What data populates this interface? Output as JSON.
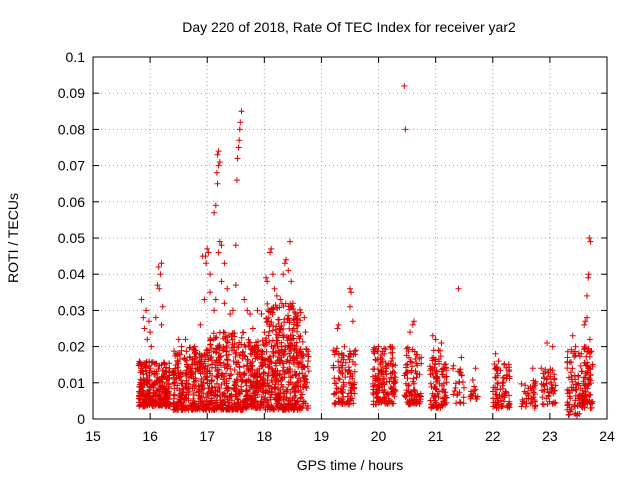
{
  "chart_data": {
    "type": "scatter",
    "title": "Day 220 of 2018, Rate Of TEC Index for receiver yar2",
    "xlabel": "GPS time / hours",
    "ylabel": "ROTI / TECUs",
    "xlim": [
      15,
      24
    ],
    "ylim": [
      0,
      0.1
    ],
    "xticks": [
      "15",
      "16",
      "17",
      "18",
      "19",
      "20",
      "21",
      "22",
      "23",
      "24"
    ],
    "yticks": [
      "0",
      "0.01",
      "0.02",
      "0.03",
      "0.04",
      "0.05",
      "0.06",
      "0.07",
      "0.08",
      "0.09",
      "0.1"
    ],
    "grid": true,
    "marker": "+",
    "color": "#e00000",
    "series": [
      {
        "points": [
          [
            15.85,
            0.033
          ],
          [
            15.88,
            0.028
          ],
          [
            15.9,
            0.025
          ],
          [
            15.93,
            0.03
          ],
          [
            15.95,
            0.022
          ],
          [
            15.98,
            0.027
          ],
          [
            16.0,
            0.024
          ],
          [
            16.02,
            0.02
          ],
          [
            16.15,
            0.042
          ],
          [
            16.18,
            0.04
          ],
          [
            16.2,
            0.043
          ],
          [
            16.13,
            0.037
          ],
          [
            16.16,
            0.036
          ],
          [
            16.22,
            0.031
          ],
          [
            16.1,
            0.028
          ],
          [
            16.2,
            0.026
          ],
          [
            16.45,
            0.018
          ],
          [
            16.5,
            0.022
          ],
          [
            16.55,
            0.02
          ],
          [
            16.62,
            0.022
          ],
          [
            16.7,
            0.017
          ],
          [
            16.78,
            0.02
          ],
          [
            16.82,
            0.016
          ],
          [
            16.88,
            0.026
          ],
          [
            16.92,
            0.045
          ],
          [
            16.97,
            0.045
          ],
          [
            17.0,
            0.047
          ],
          [
            17.02,
            0.046
          ],
          [
            16.98,
            0.043
          ],
          [
            17.05,
            0.04
          ],
          [
            16.95,
            0.033
          ],
          [
            17.05,
            0.035
          ],
          [
            17.12,
            0.057
          ],
          [
            17.15,
            0.059
          ],
          [
            17.17,
            0.068
          ],
          [
            17.18,
            0.065
          ],
          [
            17.2,
            0.07
          ],
          [
            17.18,
            0.073
          ],
          [
            17.2,
            0.074
          ],
          [
            17.22,
            0.071
          ],
          [
            17.22,
            0.049
          ],
          [
            17.2,
            0.046
          ],
          [
            17.25,
            0.048
          ],
          [
            17.3,
            0.043
          ],
          [
            17.25,
            0.038
          ],
          [
            17.12,
            0.03
          ],
          [
            17.15,
            0.033
          ],
          [
            17.3,
            0.032
          ],
          [
            17.35,
            0.036
          ],
          [
            17.4,
            0.029
          ],
          [
            17.45,
            0.03
          ],
          [
            17.5,
            0.037
          ],
          [
            17.52,
            0.066
          ],
          [
            17.53,
            0.072
          ],
          [
            17.55,
            0.075
          ],
          [
            17.56,
            0.077
          ],
          [
            17.57,
            0.08
          ],
          [
            17.58,
            0.082
          ],
          [
            17.6,
            0.085
          ],
          [
            17.5,
            0.048
          ],
          [
            17.65,
            0.033
          ],
          [
            17.7,
            0.03
          ],
          [
            17.75,
            0.029
          ],
          [
            17.8,
            0.025
          ],
          [
            17.88,
            0.03
          ],
          [
            17.95,
            0.029
          ],
          [
            18.03,
            0.039
          ],
          [
            18.05,
            0.038
          ],
          [
            18.1,
            0.046
          ],
          [
            18.12,
            0.047
          ],
          [
            18.15,
            0.04
          ],
          [
            18.18,
            0.036
          ],
          [
            18.22,
            0.034
          ],
          [
            18.28,
            0.033
          ],
          [
            18.33,
            0.04
          ],
          [
            18.36,
            0.043
          ],
          [
            18.38,
            0.044
          ],
          [
            18.42,
            0.041
          ],
          [
            18.45,
            0.049
          ],
          [
            18.47,
            0.038
          ],
          [
            18.5,
            0.032
          ],
          [
            18.55,
            0.029
          ],
          [
            18.7,
            0.028
          ],
          [
            18.72,
            0.024
          ],
          [
            19.28,
            0.025
          ],
          [
            19.3,
            0.026
          ],
          [
            19.5,
            0.036
          ],
          [
            19.52,
            0.035
          ],
          [
            19.5,
            0.031
          ],
          [
            19.55,
            0.027
          ],
          [
            20.0,
            0.02
          ],
          [
            20.1,
            0.018
          ],
          [
            20.2,
            0.02
          ],
          [
            20.45,
            0.092
          ],
          [
            20.47,
            0.08
          ],
          [
            20.6,
            0.026
          ],
          [
            20.62,
            0.027
          ],
          [
            20.55,
            0.024
          ],
          [
            20.95,
            0.023
          ],
          [
            21.0,
            0.022
          ],
          [
            21.1,
            0.021
          ],
          [
            21.05,
            0.019
          ],
          [
            21.4,
            0.036
          ],
          [
            21.45,
            0.017
          ],
          [
            21.7,
            0.014
          ],
          [
            22.05,
            0.018
          ],
          [
            22.1,
            0.016
          ],
          [
            22.2,
            0.015
          ],
          [
            22.7,
            0.014
          ],
          [
            22.85,
            0.014
          ],
          [
            22.95,
            0.021
          ],
          [
            23.05,
            0.02
          ],
          [
            23.4,
            0.023
          ],
          [
            23.45,
            0.02
          ],
          [
            23.55,
            0.018
          ],
          [
            23.6,
            0.026
          ],
          [
            23.62,
            0.027
          ],
          [
            23.65,
            0.034
          ],
          [
            23.67,
            0.039
          ],
          [
            23.68,
            0.04
          ],
          [
            23.69,
            0.05
          ],
          [
            23.71,
            0.049
          ],
          [
            23.65,
            0.028
          ],
          [
            23.7,
            0.022
          ]
        ]
      }
    ]
  }
}
